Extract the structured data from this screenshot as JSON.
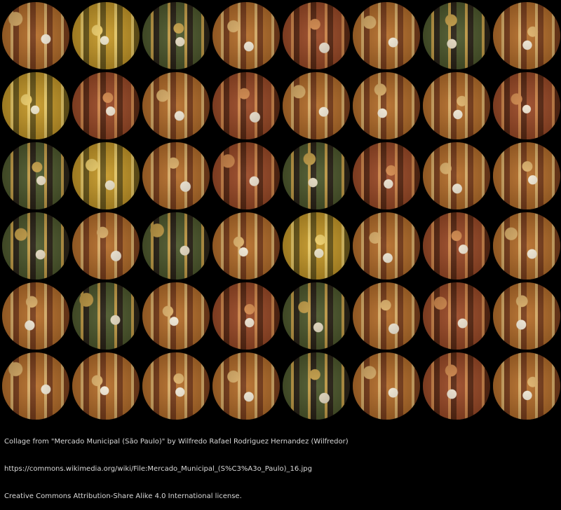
{
  "collage": {
    "rows": 6,
    "cols": 8,
    "palettes": [
      "amber",
      "gold",
      "olive",
      "amber",
      "copper",
      "amber",
      "olive",
      "amber",
      "gold",
      "copper",
      "amber",
      "copper",
      "amber",
      "amber",
      "amber",
      "copper",
      "olive",
      "gold",
      "amber",
      "copper",
      "olive",
      "copper",
      "amber",
      "amber",
      "olive",
      "amber",
      "olive",
      "amber",
      "gold",
      "amber",
      "copper",
      "amber",
      "amber",
      "olive",
      "amber",
      "copper",
      "olive",
      "amber",
      "copper",
      "amber",
      "amber",
      "amber",
      "amber",
      "amber",
      "olive",
      "amber",
      "copper",
      "amber"
    ],
    "colors": {
      "amber": [
        "#b66f2c",
        "#e0b36c",
        "#7b3f1c",
        "#f3ead7"
      ],
      "gold": [
        "#c79a2a",
        "#f0d06b",
        "#6e5a1b",
        "#ece3c8"
      ],
      "olive": [
        "#4f5a2e",
        "#c7a14a",
        "#2b2418",
        "#e7dcc3"
      ],
      "copper": [
        "#9c4b28",
        "#d58b4e",
        "#5d2a14",
        "#efe4d1"
      ]
    }
  },
  "caption": {
    "line1": "Collage from \"Mercado Municipal (São Paulo)\" by Wilfredo Rafael Rodriguez Hernandez (Wilfredor)",
    "line2": "https://commons.wikimedia.org/wiki/File:Mercado_Municipal_(S%C3%A3o_Paulo)_16.jpg",
    "line3": "Creative Commons Attribution-Share Alike 4.0 International license."
  }
}
